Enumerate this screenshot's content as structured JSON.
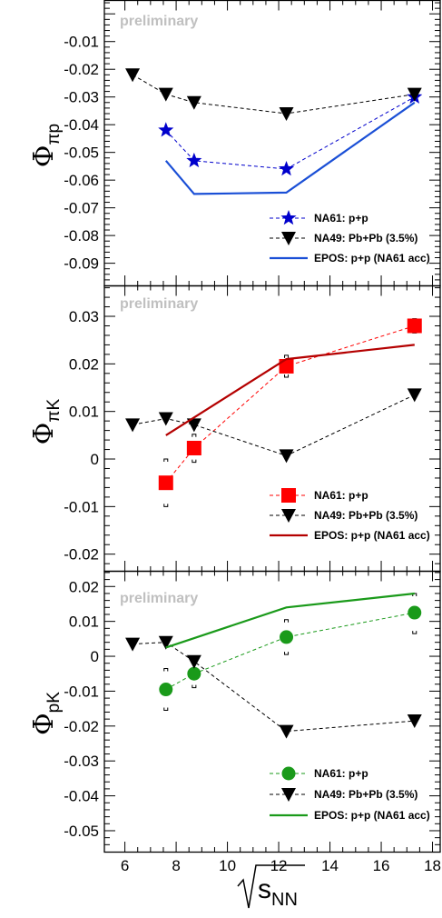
{
  "chart_data": [
    {
      "type": "line",
      "ylabel_symbol": "Φ",
      "ylabel_sub": "πp",
      "annotation": "preliminary",
      "ylim": [
        -0.098,
        0.005
      ],
      "xlim": [
        5.2,
        18.3
      ],
      "yticks": [
        -0.01,
        -0.02,
        -0.03,
        -0.04,
        -0.05,
        -0.06,
        -0.07,
        -0.08,
        -0.09
      ],
      "ytick_labels": [
        "-0.01",
        "-0.02",
        "-0.03",
        "-0.04",
        "-0.05",
        "-0.06",
        "-0.07",
        "-0.08",
        "-0.09"
      ],
      "legend_position": "bottom-right",
      "series": [
        {
          "name": "NA61: p+p",
          "marker": "star",
          "color": "#0000cc",
          "line": "dashed",
          "x": [
            7.6,
            8.7,
            12.3,
            17.3
          ],
          "y": [
            -0.042,
            -0.053,
            -0.056,
            -0.03
          ]
        },
        {
          "name": "NA49: Pb+Pb (3.5%)",
          "marker": "triangle-down",
          "color": "#000000",
          "line": "dashed",
          "x": [
            6.3,
            7.6,
            8.7,
            12.3,
            17.3
          ],
          "y": [
            -0.022,
            -0.029,
            -0.032,
            -0.036,
            -0.029
          ]
        },
        {
          "name": "EPOS: p+p (NA61 acc)",
          "marker": "none",
          "color": "#1a4fd6",
          "line": "solid",
          "x": [
            7.6,
            8.7,
            12.3,
            17.3
          ],
          "y": [
            -0.053,
            -0.065,
            -0.0645,
            -0.032
          ]
        }
      ]
    },
    {
      "type": "line",
      "ylabel_symbol": "Φ",
      "ylabel_sub": "πK",
      "annotation": "preliminary",
      "ylim": [
        -0.0235,
        0.0365
      ],
      "xlim": [
        5.2,
        18.3
      ],
      "yticks": [
        0.03,
        0.02,
        0.01,
        0,
        -0.01,
        -0.02
      ],
      "ytick_labels": [
        "0.03",
        "0.02",
        "0.01",
        "0",
        "-0.01",
        "-0.02"
      ],
      "legend_position": "bottom-right",
      "series": [
        {
          "name": "NA61: p+p",
          "marker": "square",
          "color": "#ff0000",
          "line": "dashed",
          "x": [
            7.6,
            8.7,
            12.3,
            17.3
          ],
          "y": [
            -0.005,
            0.0023,
            0.0195,
            0.028
          ],
          "syst_low": [
            -0.01,
            -0.0007,
            0.0172,
            0.0265
          ],
          "syst_high": [
            0.0,
            0.0052,
            0.0218,
            0.0295
          ]
        },
        {
          "name": "NA49: Pb+Pb (3.5%)",
          "marker": "triangle-down",
          "color": "#000000",
          "line": "dashed",
          "x": [
            6.3,
            7.6,
            8.7,
            12.3,
            17.3
          ],
          "y": [
            0.0072,
            0.0085,
            0.0072,
            0.0007,
            0.0135
          ]
        },
        {
          "name": "EPOS: p+p (NA61 acc)",
          "marker": "none",
          "color": "#b40000",
          "line": "solid",
          "x": [
            7.6,
            12.3,
            17.3
          ],
          "y": [
            0.005,
            0.021,
            0.024
          ]
        }
      ]
    },
    {
      "type": "line",
      "ylabel_symbol": "Φ",
      "ylabel_sub": "pK",
      "annotation": "preliminary",
      "ylim": [
        -0.056,
        0.0245
      ],
      "xlim": [
        5.2,
        18.3
      ],
      "yticks": [
        0.02,
        0.01,
        0,
        -0.01,
        -0.02,
        -0.03,
        -0.04,
        -0.05
      ],
      "ytick_labels": [
        "0.02",
        "0.01",
        "0",
        "-0.01",
        "-0.02",
        "-0.03",
        "-0.04",
        "-0.05"
      ],
      "xticks": [
        6,
        8,
        10,
        12,
        14,
        16,
        18
      ],
      "xtick_labels": [
        "6",
        "8",
        "10",
        "12",
        "14",
        "16",
        "18"
      ],
      "legend_position": "bottom-right",
      "series": [
        {
          "name": "NA61: p+p",
          "marker": "circle",
          "color": "#1a9a1a",
          "line": "dashed",
          "x": [
            7.6,
            8.7,
            12.3,
            17.3
          ],
          "y": [
            -0.0095,
            -0.005,
            0.0055,
            0.0125
          ],
          "syst_low": [
            -0.0155,
            -0.009,
            0.0005,
            0.0065
          ],
          "syst_high": [
            -0.0035,
            -0.001,
            0.0105,
            0.018
          ]
        },
        {
          "name": "NA49: Pb+Pb (3.5%)",
          "marker": "triangle-down",
          "color": "#000000",
          "line": "dashed",
          "x": [
            6.3,
            7.6,
            8.7,
            12.3,
            17.3
          ],
          "y": [
            0.0035,
            0.004,
            -0.0015,
            -0.0215,
            -0.0185
          ]
        },
        {
          "name": "EPOS: p+p (NA61 acc)",
          "marker": "none",
          "color": "#1a9a1a",
          "line": "solid",
          "x": [
            7.6,
            12.3,
            17.3
          ],
          "y": [
            0.0025,
            0.014,
            0.018
          ]
        }
      ]
    }
  ],
  "xlabel": {
    "radical": "√",
    "main": "s",
    "sub": "NN"
  }
}
